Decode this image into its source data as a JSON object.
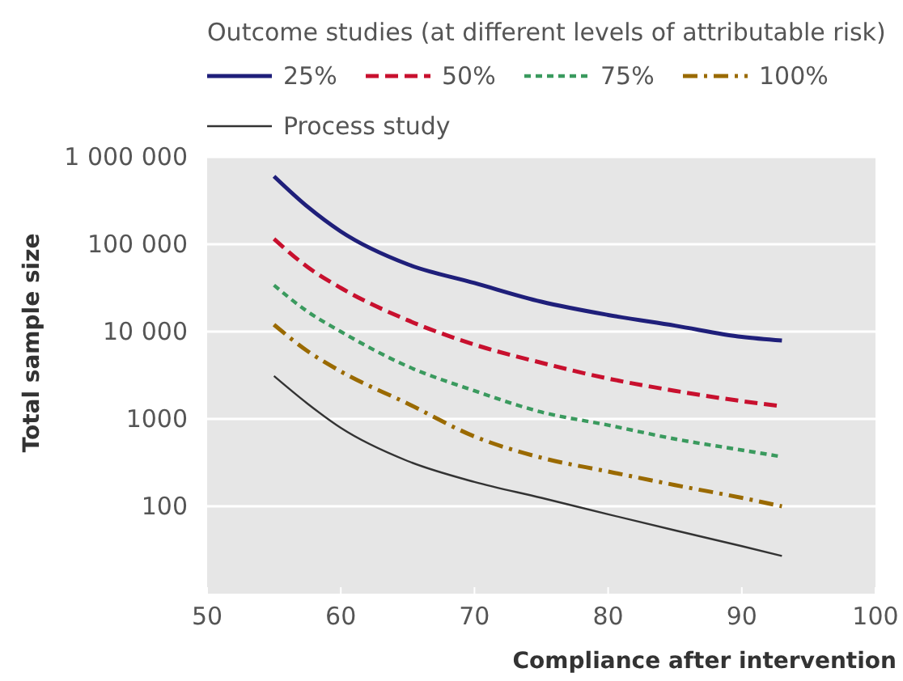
{
  "chart_data": {
    "type": "line",
    "xlabel": "Compliance after intervention",
    "ylabel": "Total sample size",
    "legend_title": "Outcome studies (at different levels of attributable risk)",
    "legend": "top",
    "grid": "y",
    "log": "y",
    "xlim": [
      50,
      100
    ],
    "xticks": [
      50,
      60,
      70,
      80,
      90,
      100
    ],
    "ylim": [
      10,
      1000000
    ],
    "yticks": [
      {
        "value": 100,
        "label": "100"
      },
      {
        "value": 1000,
        "label": "1000"
      },
      {
        "value": 10000,
        "label": "10 000"
      },
      {
        "value": 100000,
        "label": "100 000"
      },
      {
        "value": 1000000,
        "label": "1 000 000"
      }
    ],
    "x": [
      55,
      57.5,
      60,
      65,
      70,
      75,
      80,
      85,
      90,
      93
    ],
    "series": [
      {
        "name": "25%",
        "color": "#1f1f7a",
        "line_style": "solid",
        "values": [
          600000,
          270000,
          140000,
          59000,
          36000,
          22000,
          15500,
          11700,
          8700,
          7900
        ]
      },
      {
        "name": "50%",
        "color": "#c8102e",
        "line_style": "dashed",
        "values": [
          115000,
          55000,
          31600,
          13500,
          7100,
          4400,
          2900,
          2100,
          1600,
          1400
        ]
      },
      {
        "name": "75%",
        "color": "#3a9a5e",
        "line_style": "dotted",
        "values": [
          34000,
          17000,
          10000,
          4000,
          2100,
          1200,
          850,
          590,
          440,
          370
        ]
      },
      {
        "name": "100%",
        "color": "#9a6a00",
        "line_style": "dashdot",
        "values": [
          12000,
          6000,
          3500,
          1500,
          630,
          360,
          250,
          175,
          125,
          100
        ]
      },
      {
        "name": "Process study",
        "color": "#333333",
        "line_style": "solid",
        "values": [
          3100,
          1500,
          790,
          330,
          190,
          125,
          81,
          53,
          35,
          27
        ]
      }
    ]
  }
}
